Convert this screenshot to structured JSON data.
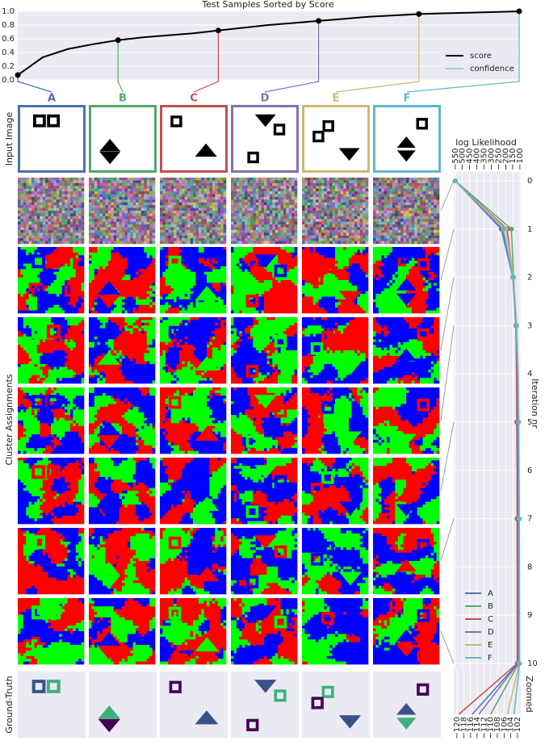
{
  "chart_data": [
    {
      "type": "line",
      "title": "Test Samples Sorted by Score",
      "series": [
        {
          "name": "score",
          "color": "#000000",
          "values": [
            0.07,
            0.33,
            0.45,
            0.52,
            0.58,
            0.62,
            0.65,
            0.68,
            0.72,
            0.76,
            0.8,
            0.83,
            0.86,
            0.89,
            0.92,
            0.94,
            0.96,
            0.97,
            0.98,
            0.99,
            1.0
          ]
        },
        {
          "name": "confidence",
          "color": "#a6c8e6",
          "values": [
            null,
            null,
            null,
            null,
            null,
            null,
            null,
            null,
            null,
            null,
            null,
            null,
            null,
            null,
            null,
            null,
            null,
            null,
            null,
            null,
            null
          ]
        }
      ],
      "marked": [
        0,
        4,
        8,
        12,
        16,
        20
      ],
      "ylim": [
        0,
        1
      ],
      "yticks": [
        {
          "value": 0,
          "label": "0.0"
        },
        0.2,
        0.4,
        0.6,
        0.8,
        {
          "value": 1,
          "label": "1.0"
        }
      ],
      "grid": true,
      "legend": "lower right"
    },
    {
      "type": "line",
      "x_label": "log Likelihood",
      "y_label": "Iteration nr",
      "zoom_label": "Zoomed",
      "x": [
        0,
        1,
        2,
        3,
        4,
        5,
        6,
        7,
        8,
        9,
        10
      ],
      "series": [
        {
          "name": "A",
          "color": "#4c72b0",
          "values": [
            -550,
            -230,
            -150,
            -130,
            -122,
            -119,
            -118,
            -117,
            -116.5,
            -116,
            -115.5
          ]
        },
        {
          "name": "B",
          "color": "#55a868",
          "values": [
            -550,
            -160,
            -145,
            -125,
            -118,
            -114,
            -112,
            -111,
            -110.5,
            -110,
            -110
          ]
        },
        {
          "name": "C",
          "color": "#c44e52",
          "values": [
            -550,
            -190,
            -148,
            -128,
            -125,
            -123,
            -121,
            -120.5,
            -120,
            -119.8,
            -119.5
          ]
        },
        {
          "name": "D",
          "color": "#8172b2",
          "values": [
            -550,
            -220,
            -150,
            -128,
            -120,
            -117,
            -116,
            -115,
            -114,
            -113.8,
            -113.5
          ]
        },
        {
          "name": "E",
          "color": "#ccb974",
          "values": [
            -550,
            -200,
            -145,
            -122,
            -112,
            -108,
            -107,
            -106,
            -105.5,
            -105.2,
            -105
          ]
        },
        {
          "name": "F",
          "color": "#64b5cd",
          "values": [
            -550,
            -215,
            -148,
            -127,
            -115,
            -110,
            -107,
            -105,
            -104,
            -103.5,
            -103
          ]
        }
      ],
      "shown_iterations": [
        0,
        1,
        2,
        3,
        5,
        7,
        10
      ],
      "xlim": [
        -560,
        -95
      ],
      "xticks": [
        {
          "value": -550,
          "label": "−550"
        },
        {
          "value": -500,
          "label": "−500"
        },
        {
          "value": -450,
          "label": "−450"
        },
        {
          "value": -400,
          "label": "−400"
        },
        {
          "value": -350,
          "label": "−350"
        },
        {
          "value": -300,
          "label": "−300"
        },
        {
          "value": -250,
          "label": "−250"
        },
        {
          "value": -200,
          "label": "−200"
        },
        {
          "value": -150,
          "label": "−150"
        },
        {
          "value": -100,
          "label": "−100"
        }
      ],
      "ylim": [
        0,
        10
      ],
      "yticks": [
        0,
        1,
        2,
        3,
        4,
        5,
        6,
        7,
        8,
        9,
        10
      ],
      "zoom_xlim": [
        -121,
        -101
      ],
      "zoom_xticks": [
        {
          "value": -120,
          "label": "−120"
        },
        {
          "value": -118,
          "label": "−118"
        },
        {
          "value": -116,
          "label": "−116"
        },
        {
          "value": -114,
          "label": "−114"
        },
        {
          "value": -112,
          "label": "−112"
        },
        {
          "value": -110,
          "label": "−110"
        },
        {
          "value": -108,
          "label": "−108"
        },
        {
          "value": -106,
          "label": "−106"
        },
        {
          "value": -104,
          "label": "−104"
        },
        {
          "value": -102,
          "label": "−102"
        }
      ],
      "grid": true,
      "legend": "lower right"
    }
  ],
  "row_labels": {
    "input": "Input Image",
    "clusters": "Cluster Assignments",
    "truth": "Ground-Truth"
  }
}
